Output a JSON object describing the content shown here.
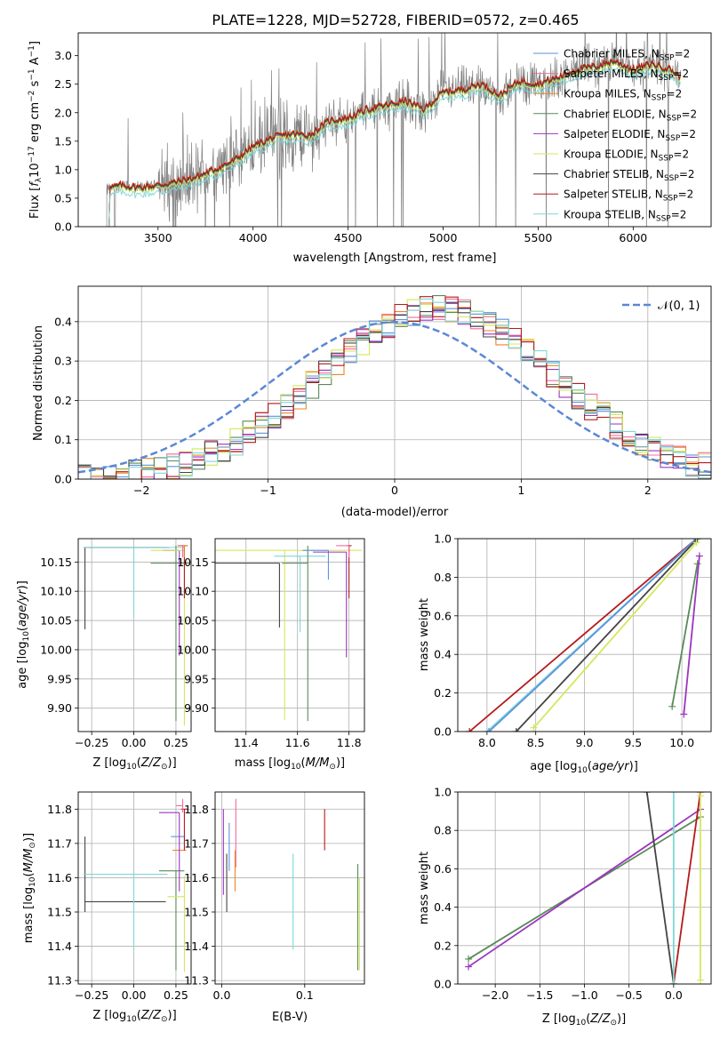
{
  "figure": {
    "title": "PLATE=1228, MJD=52728, FIBERID=0572, z=0.465"
  },
  "colors": {
    "chabrier_miles": "#5d92dd",
    "salpeter_miles": "#f46aa0",
    "kroupa_miles": "#e8862b",
    "chabrier_elodie": "#5a8a5a",
    "salpeter_elodie": "#9b35c0",
    "kroupa_elodie": "#d6e65e",
    "chabrier_stelib": "#444444",
    "salpeter_stelib": "#b31b1b",
    "kroupa_stelib": "#7fd7d7",
    "data_spectrum": "#808080",
    "normal_curve": "#5b87d6",
    "grid": "#b0b0b0"
  },
  "chart_data": [
    {
      "id": "spectrum",
      "type": "line",
      "title": "PLATE=1228, MJD=52728, FIBERID=0572, z=0.465",
      "xlabel": "wavelength [Angstrom, rest frame]",
      "ylabel": "Flux [f_λ 10^-17 erg cm^-2 s^-1 A^-1]",
      "xlim": [
        3080,
        6410
      ],
      "ylim": [
        0,
        3.4
      ],
      "xticks": [
        "3500",
        "4000",
        "4500",
        "5000",
        "5500",
        "6000"
      ],
      "yticks": [
        "0.0",
        "0.5",
        "1.0",
        "1.5",
        "2.0",
        "2.5",
        "3.0"
      ],
      "grid": false,
      "legend_position": "top-right",
      "legend": [
        "Chabrier MILES, N_SSP=2",
        "Salpeter MILES, N_SSP=2",
        "Kroupa MILES, N_SSP=2",
        "Chabrier ELODIE, N_SSP=2",
        "Salpeter ELODIE, N_SSP=2",
        "Kroupa ELODIE, N_SSP=2",
        "Chabrier STELIB, N_SSP=2",
        "Salpeter STELIB, N_SSP=2",
        "Kroupa STELIB, N_SSP=2"
      ],
      "model_shape": {
        "x": [
          3230,
          3300,
          3400,
          3500,
          3600,
          3700,
          3800,
          3900,
          4000,
          4100,
          4200,
          4300,
          4400,
          4500,
          4600,
          4700,
          4800,
          4900,
          5000,
          5100,
          5200,
          5300,
          5400,
          5500,
          5600,
          5700,
          5800,
          5900,
          6000,
          6100,
          6200,
          6250
        ],
        "y": [
          0.65,
          0.72,
          0.68,
          0.72,
          0.78,
          0.86,
          1.0,
          1.15,
          1.4,
          1.55,
          1.62,
          1.6,
          1.85,
          1.9,
          2.05,
          2.12,
          2.2,
          2.05,
          2.35,
          2.4,
          2.5,
          2.3,
          2.55,
          2.5,
          2.6,
          2.75,
          2.8,
          2.9,
          2.75,
          2.85,
          2.75,
          2.6
        ]
      }
    },
    {
      "id": "residuals",
      "type": "line",
      "xlabel": "(data-model)/error",
      "ylabel": "Normed distribution",
      "xlim": [
        -2.5,
        2.5
      ],
      "ylim": [
        0,
        0.49
      ],
      "xticks": [
        "−2",
        "−1",
        "0",
        "1",
        "2"
      ],
      "yticks": [
        "0.0",
        "0.1",
        "0.2",
        "0.3",
        "0.4"
      ],
      "grid": true,
      "legend_position": "top-right",
      "legend": [
        "𝒩(0, 1)"
      ],
      "hist_bin_width": 0.1
    },
    {
      "id": "age_vs_Z",
      "type": "scatter",
      "xlabel": "Z [log10(Z/Z⊙)]",
      "ylabel": "age [log10(age/yr)]",
      "xlim": [
        -0.33,
        0.34
      ],
      "ylim": [
        9.86,
        10.19
      ],
      "xticks": [
        "−0.25",
        "0.00",
        "0.25"
      ],
      "yticks": [
        "9.90",
        "9.95",
        "10.00",
        "10.05",
        "10.10",
        "10.15"
      ],
      "grid": true
    },
    {
      "id": "age_vs_mass",
      "type": "scatter",
      "xlabel": "mass [log10(M/M⊙)]",
      "ylabel": "",
      "xlim": [
        11.28,
        11.86
      ],
      "ylim": [
        9.86,
        10.19
      ],
      "xticks": [
        "11.4",
        "11.6",
        "11.8"
      ],
      "yticks": [
        "9.90",
        "9.95",
        "10.00",
        "10.05",
        "10.10",
        "10.15"
      ],
      "grid": true
    },
    {
      "id": "weight_vs_age",
      "type": "line",
      "xlabel": "age [log10(age/yr)]",
      "ylabel": "mass weight",
      "xlim": [
        7.7,
        10.3
      ],
      "ylim": [
        0,
        1.0
      ],
      "xticks": [
        "8.0",
        "8.5",
        "9.0",
        "9.5",
        "10.0"
      ],
      "yticks": [
        "0.0",
        "0.2",
        "0.4",
        "0.6",
        "0.8",
        "1.0"
      ],
      "grid": true,
      "series": [
        {
          "key": "salpeter_stelib",
          "x": [
            7.82,
            10.15
          ],
          "y": [
            0.0,
            1.0
          ]
        },
        {
          "key": "kroupa_stelib",
          "x": [
            8.0,
            10.15
          ],
          "y": [
            0.0,
            1.0
          ]
        },
        {
          "key": "chabrier_miles",
          "x": [
            8.02,
            10.15
          ],
          "y": [
            0.0,
            1.0
          ]
        },
        {
          "key": "chabrier_stelib",
          "x": [
            8.3,
            10.16
          ],
          "y": [
            0.0,
            1.0
          ]
        },
        {
          "key": "kroupa_elodie",
          "x": [
            8.48,
            10.15
          ],
          "y": [
            0.02,
            0.98
          ]
        },
        {
          "key": "chabrier_elodie",
          "x": [
            9.9,
            10.16
          ],
          "y": [
            0.13,
            0.87
          ]
        },
        {
          "key": "salpeter_elodie",
          "x": [
            10.02,
            10.18
          ],
          "y": [
            0.09,
            0.91
          ]
        }
      ]
    },
    {
      "id": "mass_vs_Z",
      "type": "scatter",
      "xlabel": "Z [log10(Z/Z⊙)]",
      "ylabel": "mass [log10(M/M⊙)]",
      "xlim": [
        -0.33,
        0.34
      ],
      "ylim": [
        11.29,
        11.85
      ],
      "xticks": [
        "−0.25",
        "0.00",
        "0.25"
      ],
      "yticks": [
        "11.3",
        "11.4",
        "11.5",
        "11.6",
        "11.7",
        "11.8"
      ],
      "grid": true
    },
    {
      "id": "mass_vs_ebv",
      "type": "scatter",
      "xlabel": "E(B-V)",
      "ylabel": "",
      "xlim": [
        -0.008,
        0.172
      ],
      "ylim": [
        11.29,
        11.85
      ],
      "xticks": [
        "0.0",
        "0.1"
      ],
      "yticks": [
        "11.3",
        "11.4",
        "11.5",
        "11.6",
        "11.7",
        "11.8"
      ],
      "grid": true
    },
    {
      "id": "weight_vs_Z",
      "type": "line",
      "xlabel": "Z [log10(Z/Z⊙)]",
      "ylabel": "mass weight",
      "xlim": [
        -2.42,
        0.42
      ],
      "ylim": [
        0,
        1.0
      ],
      "xticks": [
        "−2.0",
        "−1.5",
        "−1.0",
        "−0.5",
        "0.0"
      ],
      "yticks": [
        "0.0",
        "0.2",
        "0.4",
        "0.6",
        "0.8",
        "1.0"
      ],
      "grid": true,
      "series": [
        {
          "key": "chabrier_elodie",
          "x": [
            -2.3,
            0.3
          ],
          "y": [
            0.13,
            0.87
          ]
        },
        {
          "key": "salpeter_elodie",
          "x": [
            -2.3,
            0.3
          ],
          "y": [
            0.09,
            0.91
          ]
        },
        {
          "key": "chabrier_stelib",
          "x": [
            -0.3,
            0.0
          ],
          "y": [
            1.0,
            0.0
          ]
        },
        {
          "key": "salpeter_stelib",
          "x": [
            0.0,
            0.3
          ],
          "y": [
            0.0,
            1.0
          ]
        },
        {
          "key": "kroupa_stelib",
          "x": [
            0.0,
            0.0
          ],
          "y": [
            0.0,
            1.0
          ]
        },
        {
          "key": "kroupa_elodie",
          "x": [
            0.3,
            0.3
          ],
          "y": [
            0.02,
            0.98
          ]
        }
      ]
    }
  ]
}
